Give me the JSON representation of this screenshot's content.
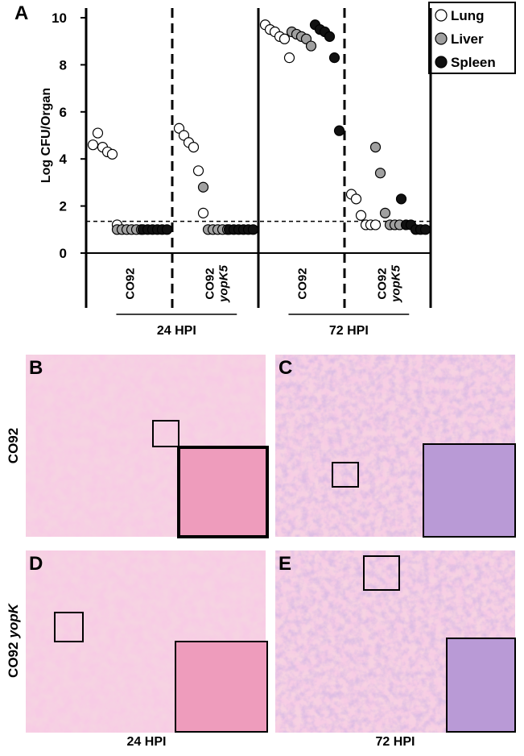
{
  "chart_data": {
    "type": "strip",
    "panel_label": "A",
    "y_label": "Log CFU/Organ",
    "categories": [
      [
        "CO92"
      ],
      [
        "CO92",
        "yopK5"
      ],
      [
        "CO92"
      ],
      [
        "CO92",
        "yopK5"
      ]
    ],
    "group_labels": [
      "24 HPI",
      "72 HPI"
    ],
    "ylim": [
      0,
      10
    ],
    "yticks": [
      0,
      2,
      4,
      6,
      8,
      10
    ],
    "threshold": 1.35,
    "series": [
      {
        "name": "Lung",
        "color": "#ffffff",
        "values": [
          [
            4.6,
            5.1,
            4.5,
            4.3,
            4.2,
            1.2
          ],
          [
            5.3,
            5.0,
            4.7,
            4.5,
            3.5,
            1.7
          ],
          [
            9.7,
            9.5,
            9.4,
            9.2,
            9.1,
            8.3
          ],
          [
            2.5,
            2.3,
            1.6,
            1.2,
            1.2,
            1.2
          ]
        ]
      },
      {
        "name": "Liver",
        "color": "#a0a0a0",
        "values": [
          [
            1.0,
            1.0,
            1.0,
            1.0,
            1.0,
            1.0
          ],
          [
            2.8,
            1.0,
            1.0,
            1.0,
            1.0,
            1.0
          ],
          [
            9.4,
            9.3,
            9.2,
            9.1,
            8.8
          ],
          [
            4.5,
            3.4,
            1.7,
            1.2,
            1.2,
            1.2
          ]
        ]
      },
      {
        "name": "Spleen",
        "color": "#111111",
        "values": [
          [
            1.0,
            1.0,
            1.0,
            1.0,
            1.0,
            1.0
          ],
          [
            1.0,
            1.0,
            1.0,
            1.0,
            1.0,
            1.0
          ],
          [
            9.7,
            9.5,
            9.4,
            9.2,
            8.3,
            5.2
          ],
          [
            2.3,
            1.2,
            1.2,
            1.0,
            1.0,
            1.0
          ]
        ]
      }
    ]
  },
  "figure": {
    "panels": [
      "B",
      "C",
      "D",
      "E"
    ],
    "row_labels": [
      [
        "CO92"
      ],
      [
        "CO92",
        "yopK"
      ]
    ],
    "column_labels": [
      "24 HPI",
      "72 HPI"
    ]
  }
}
